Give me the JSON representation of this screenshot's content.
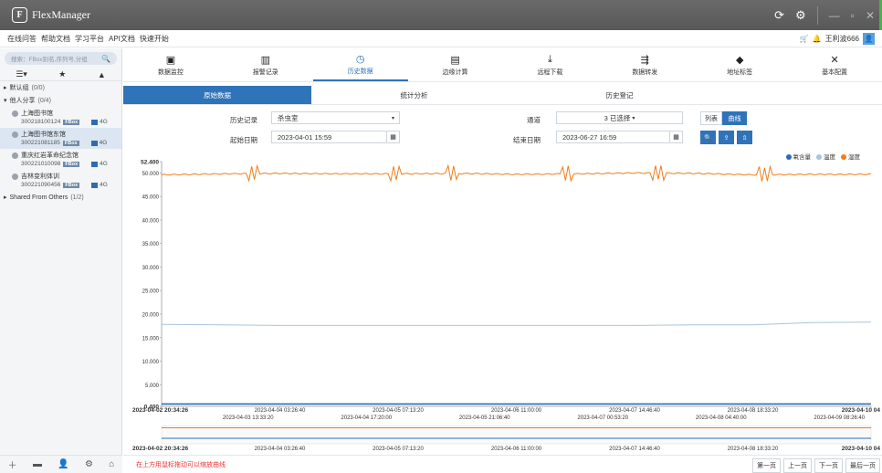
{
  "app": {
    "title": "FlexManager"
  },
  "menu": {
    "items": [
      "在线问答",
      "帮助文档",
      "学习平台",
      "API文档",
      "快速开始"
    ],
    "user": "王利波666"
  },
  "sidebar": {
    "search_placeholder": "搜索：FBox别名,序列号,分组",
    "groups": [
      {
        "label": "默认组",
        "count": "(0/0)"
      },
      {
        "label": "他人分享",
        "count": "(0/4)"
      }
    ],
    "devices": [
      {
        "name": "上海图书馆",
        "serial": "300218100124",
        "tag": "FBox",
        "net": "4G"
      },
      {
        "name": "上海图书馆东馆",
        "serial": "300221081185",
        "tag": "FBox",
        "net": "4G"
      },
      {
        "name": "重庆红岩革命纪念馆",
        "serial": "300221010098",
        "tag": "FBox",
        "net": "4G"
      },
      {
        "name": "吉林变利体训",
        "serial": "300221090456",
        "tag": "FBox",
        "net": "4G"
      }
    ],
    "shared": {
      "label": "Shared From Others",
      "count": "(1/2)"
    }
  },
  "nav": {
    "items": [
      {
        "label": "数据监控",
        "icon": "monitor-icon"
      },
      {
        "label": "报警记录",
        "icon": "alarm-icon"
      },
      {
        "label": "历史数据",
        "icon": "history-icon"
      },
      {
        "label": "边缘计算",
        "icon": "edge-compute-icon"
      },
      {
        "label": "远程下载",
        "icon": "download-icon"
      },
      {
        "label": "数据转发",
        "icon": "forward-icon"
      },
      {
        "label": "地址标签",
        "icon": "tag-icon"
      },
      {
        "label": "基本配置",
        "icon": "config-icon"
      }
    ],
    "active": 2
  },
  "subtabs": [
    "原始数据",
    "统计分析",
    "历史登记"
  ],
  "form": {
    "history_label": "历史记录",
    "history_value": "杀虫室",
    "channel_label": "通道",
    "channel_value": "3 已选择",
    "start_label": "起始日期",
    "start_value": "2023-04-01 15:59",
    "end_label": "结束日期",
    "end_value": "2023-06-27 16:59",
    "list_btn": "列表",
    "curve_btn": "曲线"
  },
  "chart_data": {
    "type": "line",
    "y_ticks": [
      "52.400",
      "50.000",
      "45.000",
      "40.000",
      "35.000",
      "30.000",
      "25.000",
      "20.000",
      "15.000",
      "10.000",
      "5.000",
      "0.400"
    ],
    "ylim": [
      0.4,
      52.4
    ],
    "x_ticks_row1": [
      "2023-04-02 20:34:26",
      "2023-04-04 03:26:40",
      "2023-04-05 07:13:20",
      "2023-04-06 11:00:00",
      "2023-04-07 14:46:40",
      "2023-04-08 18:33:20",
      "2023-04-10 04"
    ],
    "x_ticks_row2": [
      "2023-04-03 13:33:20",
      "2023-04-04 17:20:00",
      "2023-04-05 21:06:40",
      "2023-04-07 00:53:20",
      "2023-04-08 04:40:00",
      "2023-04-09 08:26:40"
    ],
    "series": [
      {
        "name": "氧含量",
        "color": "#2a6db5",
        "values": [
          0.9,
          0.9,
          0.9,
          0.9,
          0.9,
          0.9,
          0.9,
          0.9,
          0.9,
          0.9,
          0.9,
          0.9,
          0.9
        ]
      },
      {
        "name": "温度",
        "color": "#a9c4de",
        "values": [
          17.8,
          17.7,
          17.6,
          17.6,
          17.6,
          17.6,
          17.6,
          17.6,
          17.6,
          17.7,
          17.7,
          18.2,
          18.3
        ]
      },
      {
        "name": "湿度",
        "color": "#f07d1a",
        "values": [
          49.6,
          49.8,
          49.9,
          49.8,
          49.8,
          49.9,
          49.7,
          49.8,
          50.0,
          49.9,
          49.6,
          49.7,
          49.7
        ]
      }
    ]
  },
  "footer": {
    "hint": "在上方用鼠标拖动可以缩放曲线",
    "pager": [
      "第一页",
      "上一页",
      "下一页",
      "最后一页"
    ]
  }
}
